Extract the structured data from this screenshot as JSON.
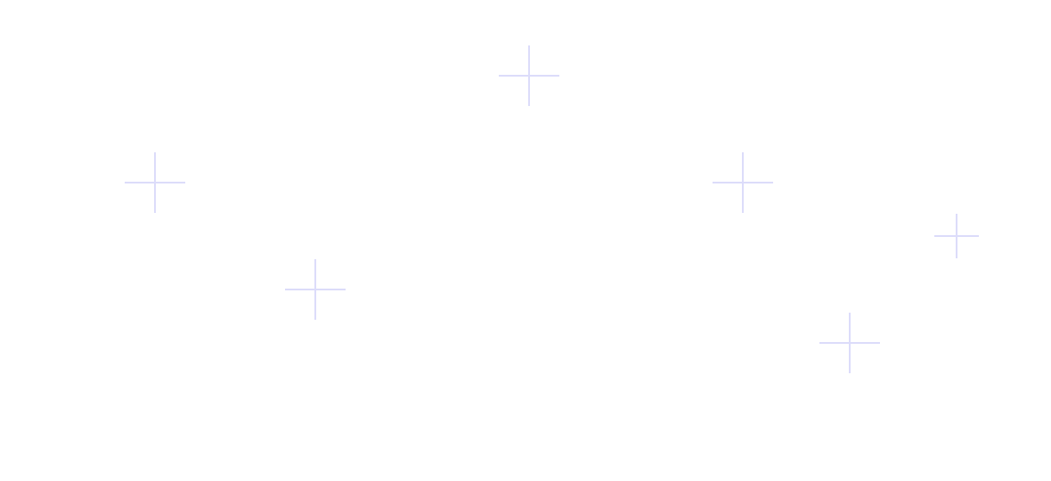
{
  "background_color": "#ffffff",
  "decoration": {
    "icon": "plus-icon",
    "color": "#dcdcfa"
  }
}
